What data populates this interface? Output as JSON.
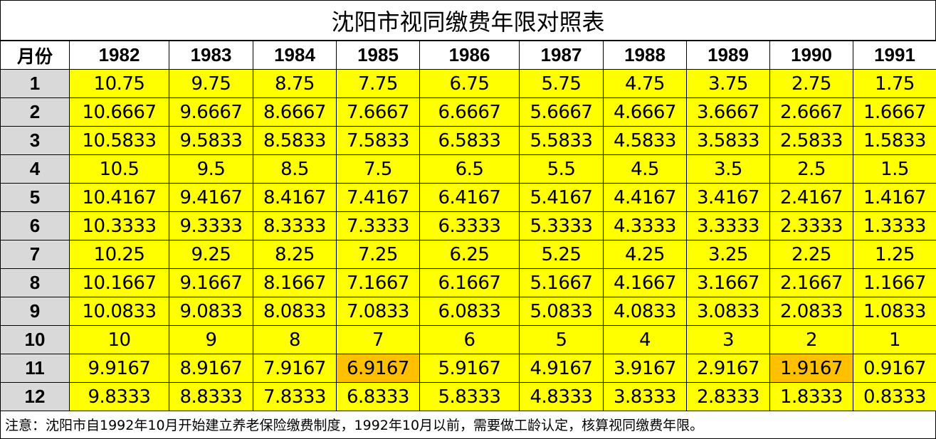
{
  "title": "沈阳市视同缴费年限对照表",
  "corner_label": "月份",
  "years": [
    "1982",
    "1983",
    "1984",
    "1985",
    "1986",
    "1987",
    "1988",
    "1989",
    "1990",
    "1991"
  ],
  "rows": [
    {
      "month": "1",
      "values": [
        "10.75",
        "9.75",
        "8.75",
        "7.75",
        "6.75",
        "5.75",
        "4.75",
        "3.75",
        "2.75",
        "1.75"
      ]
    },
    {
      "month": "2",
      "values": [
        "10.6667",
        "9.6667",
        "8.6667",
        "7.6667",
        "6.6667",
        "5.6667",
        "4.6667",
        "3.6667",
        "2.6667",
        "1.6667"
      ]
    },
    {
      "month": "3",
      "values": [
        "10.5833",
        "9.5833",
        "8.5833",
        "7.5833",
        "6.5833",
        "5.5833",
        "4.5833",
        "3.5833",
        "2.5833",
        "1.5833"
      ]
    },
    {
      "month": "4",
      "values": [
        "10.5",
        "9.5",
        "8.5",
        "7.5",
        "6.5",
        "5.5",
        "4.5",
        "3.5",
        "2.5",
        "1.5"
      ]
    },
    {
      "month": "5",
      "values": [
        "10.4167",
        "9.4167",
        "8.4167",
        "7.4167",
        "6.4167",
        "5.4167",
        "4.4167",
        "3.4167",
        "2.4167",
        "1.4167"
      ]
    },
    {
      "month": "6",
      "values": [
        "10.3333",
        "9.3333",
        "8.3333",
        "7.3333",
        "6.3333",
        "5.3333",
        "4.3333",
        "3.3333",
        "2.3333",
        "1.3333"
      ]
    },
    {
      "month": "7",
      "values": [
        "10.25",
        "9.25",
        "8.25",
        "7.25",
        "6.25",
        "5.25",
        "4.25",
        "3.25",
        "2.25",
        "1.25"
      ]
    },
    {
      "month": "8",
      "values": [
        "10.1667",
        "9.1667",
        "8.1667",
        "7.1667",
        "6.1667",
        "5.1667",
        "4.1667",
        "3.1667",
        "2.1667",
        "1.1667"
      ]
    },
    {
      "month": "9",
      "values": [
        "10.0833",
        "9.0833",
        "8.0833",
        "7.0833",
        "6.0833",
        "5.0833",
        "4.0833",
        "3.0833",
        "2.0833",
        "1.0833"
      ]
    },
    {
      "month": "10",
      "values": [
        "10",
        "9",
        "8",
        "7",
        "6",
        "5",
        "4",
        "3",
        "2",
        "1"
      ]
    },
    {
      "month": "11",
      "values": [
        "9.9167",
        "8.9167",
        "7.9167",
        "6.9167",
        "5.9167",
        "4.9167",
        "3.9167",
        "2.9167",
        "1.9167",
        "0.9167"
      ],
      "highlight": [
        3,
        8
      ]
    },
    {
      "month": "12",
      "values": [
        "9.8333",
        "8.8333",
        "7.8333",
        "6.8333",
        "5.8333",
        "4.8333",
        "3.8333",
        "2.8333",
        "1.8333",
        "0.8333"
      ]
    }
  ],
  "note": "注意：沈阳市自1992年10月开始建立养老保险缴费制度，1992年10月以前，需要做工龄认定，核算视同缴费年限。",
  "colors": {
    "cell_fill": "#ffff00",
    "highlight_fill": "#ffc000",
    "row_header_fill": "#d9d9d9"
  }
}
